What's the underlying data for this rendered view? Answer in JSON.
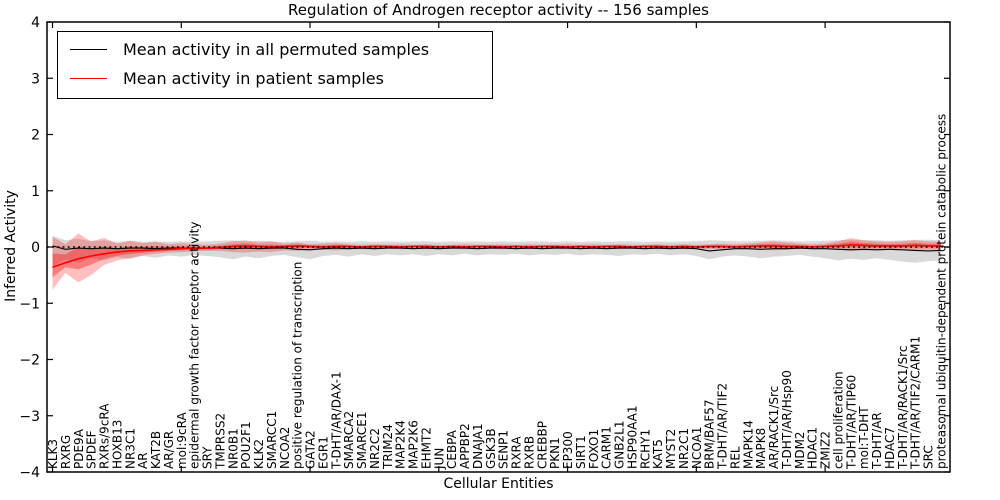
{
  "chart_data": {
    "type": "line",
    "title": "Regulation of Androgen receptor activity -- 156 samples",
    "xlabel": "Cellular Entities",
    "ylabel": "Inferred Activity",
    "ylim": [
      -4,
      4
    ],
    "grid": false,
    "legend_position": "upper left",
    "yticks": {
      "values": [
        4,
        3,
        2,
        1,
        0,
        -1,
        -2,
        -3,
        -4
      ],
      "labels": [
        "4",
        "3",
        "2",
        "1",
        "0",
        "−1",
        "−2",
        "−3",
        "−4"
      ]
    },
    "reference_line": {
      "value": 0,
      "style": "dotted",
      "color": "#000000"
    },
    "categories": [
      "KLK3",
      "RXRG",
      "PDE9A",
      "SPDEF",
      "RXRs/9cRA",
      "HOXB13",
      "NR3C1",
      "AR",
      "KAT2B",
      "AR/GR",
      "mol:9cRA",
      "epidermal growth factor receptor activity",
      "SRY",
      "TMPRSS2",
      "NR0B1",
      "POU2F1",
      "KLK2",
      "SMARCC1",
      "NCOA2",
      "positive regulation of transcription",
      "GATA2",
      "EGR1",
      "T-DHT/AR/DAX-1",
      "SMARCA2",
      "SMARCE1",
      "NR2C2",
      "TRIM24",
      "MAP2K4",
      "MAP2K6",
      "EHMT2",
      "JUN",
      "CEBPA",
      "APPBP2",
      "DNAJA1",
      "GSK3B",
      "SENP1",
      "RXRA",
      "RXRB",
      "CREBBP",
      "PKN1",
      "EP300",
      "SIRT1",
      "FOXO1",
      "CARM1",
      "GNB2L1",
      "HSP90AA1",
      "RCHY1",
      "KAT5",
      "MYST2",
      "NR2C1",
      "NCOA1",
      "BRM/BAF57",
      "T-DHT/AR/TIF2",
      "REL",
      "MAPK14",
      "MAPK8",
      "AR/RACK1/Src",
      "T-DHT/AR/Hsp90",
      "MDM2",
      "HDAC1",
      "ZMIZ2",
      "cell proliferation",
      "T-DHT/AR/TIP60",
      "mol:T-DHT",
      "T-DHT/AR",
      "HDAC7",
      "T-DHT/AR/RACK1/Src",
      "T-DHT/AR/TIF2/CARM1",
      "SRC",
      "proteasomal ubiquitin-dependent protein catabolic process"
    ],
    "series": [
      {
        "name": "Mean activity in all permuted samples",
        "color": "#000000",
        "style": "solid",
        "values": [
          0.02,
          -0.04,
          -0.02,
          -0.03,
          -0.02,
          -0.03,
          -0.02,
          -0.02,
          -0.03,
          -0.02,
          -0.02,
          -0.03,
          -0.02,
          -0.02,
          -0.03,
          -0.02,
          -0.03,
          -0.02,
          -0.02,
          -0.04,
          -0.05,
          -0.03,
          -0.02,
          -0.03,
          -0.02,
          -0.03,
          -0.02,
          -0.02,
          -0.03,
          -0.02,
          -0.03,
          -0.02,
          -0.02,
          -0.03,
          -0.02,
          -0.02,
          -0.03,
          -0.02,
          -0.03,
          -0.02,
          -0.02,
          -0.03,
          -0.02,
          -0.03,
          -0.02,
          -0.02,
          -0.03,
          -0.02,
          -0.03,
          -0.02,
          -0.03,
          -0.07,
          -0.05,
          -0.03,
          -0.03,
          -0.04,
          -0.03,
          -0.03,
          -0.02,
          -0.03,
          -0.03,
          -0.04,
          -0.05,
          -0.04,
          -0.05,
          -0.04,
          -0.05,
          -0.06,
          -0.07,
          -0.06
        ],
        "band": {
          "color": "#808080",
          "upper": [
            0.2,
            0.12,
            0.15,
            0.1,
            0.12,
            0.09,
            0.11,
            0.09,
            0.1,
            0.09,
            0.1,
            0.09,
            0.1,
            0.11,
            0.12,
            0.1,
            0.11,
            0.1,
            0.09,
            0.1,
            0.11,
            0.09,
            0.1,
            0.09,
            0.1,
            0.09,
            0.1,
            0.09,
            0.1,
            0.1,
            0.09,
            0.1,
            0.09,
            0.1,
            0.09,
            0.1,
            0.09,
            0.1,
            0.1,
            0.09,
            0.1,
            0.09,
            0.1,
            0.09,
            0.1,
            0.1,
            0.09,
            0.1,
            0.09,
            0.1,
            0.1,
            0.12,
            0.11,
            0.1,
            0.1,
            0.11,
            0.12,
            0.11,
            0.1,
            0.1,
            0.11,
            0.12,
            0.13,
            0.12,
            0.12,
            0.11,
            0.12,
            0.13,
            0.13,
            0.12
          ],
          "lower": [
            -0.35,
            -0.22,
            -0.28,
            -0.2,
            -0.24,
            -0.18,
            -0.21,
            -0.16,
            -0.19,
            -0.15,
            -0.17,
            -0.14,
            -0.16,
            -0.18,
            -0.22,
            -0.17,
            -0.2,
            -0.16,
            -0.14,
            -0.18,
            -0.22,
            -0.16,
            -0.14,
            -0.17,
            -0.13,
            -0.16,
            -0.13,
            -0.15,
            -0.13,
            -0.16,
            -0.13,
            -0.15,
            -0.12,
            -0.15,
            -0.13,
            -0.14,
            -0.12,
            -0.15,
            -0.13,
            -0.14,
            -0.12,
            -0.15,
            -0.13,
            -0.14,
            -0.16,
            -0.13,
            -0.14,
            -0.12,
            -0.15,
            -0.13,
            -0.16,
            -0.22,
            -0.17,
            -0.15,
            -0.17,
            -0.2,
            -0.17,
            -0.16,
            -0.14,
            -0.17,
            -0.2,
            -0.24,
            -0.21,
            -0.23,
            -0.2,
            -0.23,
            -0.26,
            -0.28,
            -0.25,
            -0.24
          ]
        }
      },
      {
        "name": "Mean activity in patient samples",
        "color": "#ff0000",
        "style": "solid",
        "values": [
          -0.36,
          -0.28,
          -0.21,
          -0.16,
          -0.12,
          -0.09,
          -0.07,
          -0.06,
          -0.05,
          -0.04,
          -0.03,
          -0.02,
          -0.02,
          -0.01,
          0.01,
          0.02,
          0.01,
          0.0,
          0.01,
          0.02,
          0.01,
          0.0,
          0.01,
          0.01,
          0.0,
          0.01,
          0.01,
          0.0,
          0.01,
          0.01,
          0.0,
          0.01,
          0.0,
          0.01,
          0.01,
          0.0,
          0.01,
          0.0,
          0.01,
          0.01,
          0.0,
          0.01,
          0.0,
          0.01,
          0.01,
          0.0,
          0.01,
          0.01,
          0.0,
          0.01,
          0.0,
          0.01,
          0.01,
          0.0,
          0.01,
          0.02,
          0.02,
          0.01,
          0.01,
          0.0,
          0.01,
          0.02,
          0.04,
          0.03,
          0.02,
          0.02,
          0.02,
          0.03,
          0.02,
          0.02
        ],
        "band": {
          "color": "#ff0000",
          "upper": [
            0.18,
            0.05,
            0.24,
            0.1,
            0.16,
            0.06,
            0.11,
            0.07,
            0.09,
            0.05,
            0.07,
            0.05,
            0.04,
            0.06,
            0.1,
            0.12,
            0.08,
            0.1,
            0.06,
            0.08,
            0.05,
            0.06,
            0.07,
            0.05,
            0.04,
            0.05,
            0.04,
            0.05,
            0.04,
            0.05,
            0.04,
            0.04,
            0.05,
            0.04,
            0.04,
            0.05,
            0.04,
            0.05,
            0.04,
            0.04,
            0.05,
            0.04,
            0.05,
            0.04,
            0.05,
            0.04,
            0.04,
            0.05,
            0.04,
            0.05,
            0.04,
            0.05,
            0.06,
            0.05,
            0.06,
            0.08,
            0.1,
            0.08,
            0.06,
            0.05,
            0.06,
            0.1,
            0.16,
            0.12,
            0.1,
            0.09,
            0.1,
            0.12,
            0.1,
            0.09
          ],
          "lower": [
            -0.76,
            -0.46,
            -0.63,
            -0.5,
            -0.32,
            -0.24,
            -0.2,
            -0.15,
            -0.12,
            -0.1,
            -0.09,
            -0.08,
            -0.07,
            -0.07,
            -0.09,
            -0.1,
            -0.08,
            -0.09,
            -0.06,
            -0.07,
            -0.05,
            -0.05,
            -0.06,
            -0.04,
            -0.04,
            -0.04,
            -0.03,
            -0.04,
            -0.03,
            -0.04,
            -0.03,
            -0.03,
            -0.04,
            -0.03,
            -0.03,
            -0.04,
            -0.03,
            -0.04,
            -0.03,
            -0.03,
            -0.04,
            -0.03,
            -0.04,
            -0.03,
            -0.04,
            -0.03,
            -0.03,
            -0.04,
            -0.03,
            -0.04,
            -0.03,
            -0.04,
            -0.04,
            -0.03,
            -0.04,
            -0.05,
            -0.06,
            -0.05,
            -0.04,
            -0.03,
            -0.04,
            -0.05,
            -0.07,
            -0.06,
            -0.05,
            -0.05,
            -0.05,
            -0.06,
            -0.05,
            -0.05
          ]
        }
      }
    ]
  }
}
